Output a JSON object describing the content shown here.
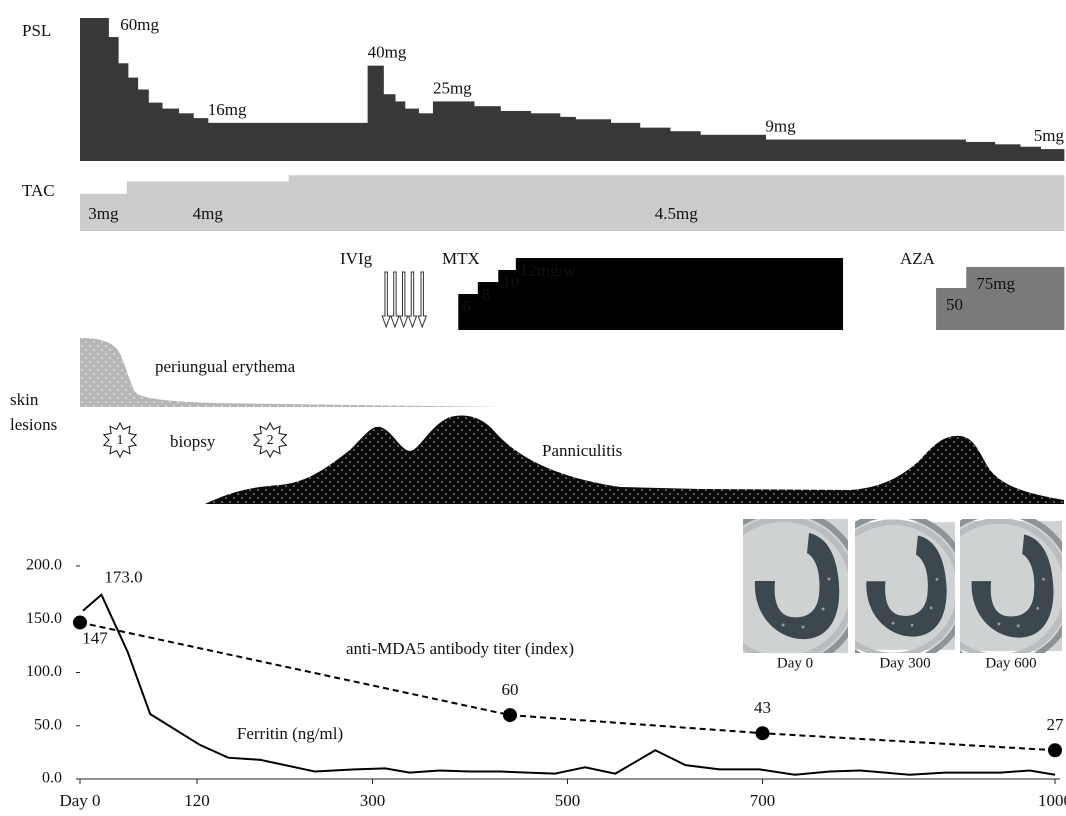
{
  "timeline": {
    "psl": {
      "label": "PSL",
      "end": 1009,
      "steps": [
        {
          "start": 0,
          "dose": 60,
          "label": "60mg"
        },
        {
          "start": 29,
          "dose": 52
        },
        {
          "start": 39,
          "dose": 41
        },
        {
          "start": 49,
          "dose": 35
        },
        {
          "start": 59,
          "dose": 30
        },
        {
          "start": 70,
          "dose": 24.5
        },
        {
          "start": 84,
          "dose": 22
        },
        {
          "start": 101,
          "dose": 20
        },
        {
          "start": 116,
          "dose": 18
        },
        {
          "start": 131,
          "dose": 16,
          "label": "16mg"
        },
        {
          "start": 295,
          "dose": 40,
          "label": "40mg"
        },
        {
          "start": 311,
          "dose": 28
        },
        {
          "start": 323,
          "dose": 25
        },
        {
          "start": 333,
          "dose": 22
        },
        {
          "start": 347,
          "dose": 20
        },
        {
          "start": 362,
          "dose": 25,
          "label": "25mg"
        },
        {
          "start": 404,
          "dose": 23
        },
        {
          "start": 431,
          "dose": 21
        },
        {
          "start": 462,
          "dose": 20
        },
        {
          "start": 492,
          "dose": 18.5
        },
        {
          "start": 508,
          "dose": 17.5
        },
        {
          "start": 544,
          "dose": 16
        },
        {
          "start": 574,
          "dose": 14
        },
        {
          "start": 605,
          "dose": 12.5
        },
        {
          "start": 636,
          "dose": 11
        },
        {
          "start": 703,
          "dose": 9,
          "label": "9mg"
        },
        {
          "start": 908,
          "dose": 8
        },
        {
          "start": 938,
          "dose": 7
        },
        {
          "start": 964,
          "dose": 6
        },
        {
          "start": 985,
          "dose": 5,
          "label": "5mg"
        }
      ]
    },
    "tac": {
      "label": "TAC",
      "end": 1009,
      "steps": [
        {
          "start": 0,
          "dose": 3,
          "label": "3mg"
        },
        {
          "start": 48,
          "dose": 4,
          "label": "4mg"
        },
        {
          "start": 214,
          "dose": 4.5,
          "label": "4.5mg"
        }
      ]
    },
    "ivig": {
      "label": "IVIg",
      "days": [
        314,
        323,
        332,
        341,
        351
      ]
    },
    "mtx": {
      "label": "MTX",
      "end": 782,
      "steps": [
        {
          "start": 388,
          "dose": 6,
          "label": "6"
        },
        {
          "start": 408,
          "dose": 8,
          "label": "8"
        },
        {
          "start": 429,
          "dose": 10,
          "label": "10"
        },
        {
          "start": 447,
          "dose": 12,
          "label": "12mg/w"
        }
      ]
    },
    "aza": {
      "label": "AZA",
      "end": 1009,
      "steps": [
        {
          "start": 878,
          "dose": 50,
          "label": "50"
        },
        {
          "start": 909,
          "dose": 75,
          "label": "75mg"
        }
      ]
    },
    "skin": {
      "label_lines": [
        "skin",
        "lesions"
      ],
      "periungual": "periungual erythema",
      "panniculitis": "Panniculitis",
      "biopsy": {
        "label": "biopsy",
        "markers": [
          {
            "label": "1",
            "day": 41
          },
          {
            "label": "2",
            "day": 195
          }
        ]
      }
    }
  },
  "ct_images": [
    "Day 0",
    "Day 300",
    "Day 600"
  ],
  "chart_data": {
    "type": "line",
    "xlim": [
      0,
      1000
    ],
    "xticks": [
      {
        "value": 0,
        "label": "Day 0"
      },
      120,
      300,
      500,
      700,
      1000
    ],
    "ylim": [
      0,
      200
    ],
    "yticks": [
      {
        "value": 0,
        "label": "0.0"
      },
      {
        "value": 50,
        "label": "50.0"
      },
      {
        "value": 100,
        "label": "100.0"
      },
      {
        "value": 150,
        "label": "150.0"
      },
      {
        "value": 200,
        "label": "200.0"
      }
    ],
    "series": [
      {
        "name": "anti-MDA5 antibody titer (index)",
        "color": "#000000",
        "dashed": true,
        "markers": true,
        "x": [
          0,
          441,
          700,
          1000
        ],
        "values": [
          147,
          60,
          43,
          27
        ]
      },
      {
        "name": "Ferritin (ng/ml)",
        "color": "#000000",
        "x": [
          3,
          22,
          49,
          72,
          123,
          152,
          185,
          241,
          282,
          313,
          338,
          369,
          400,
          431,
          487,
          518,
          549,
          590,
          621,
          656,
          697,
          733,
          769,
          800,
          851,
          887,
          944,
          974,
          1000
        ],
        "values": [
          158,
          173,
          119,
          61,
          32,
          20,
          18,
          7,
          9,
          10,
          6,
          8,
          7,
          7,
          5,
          11,
          5,
          27,
          13,
          9,
          9,
          4,
          7,
          8,
          4,
          6,
          6,
          8,
          4
        ],
        "value_labels": [
          null,
          "173.0",
          null,
          null,
          null,
          null,
          null,
          null,
          null,
          null,
          null,
          null,
          null,
          null,
          null,
          null,
          null,
          null,
          null,
          null,
          null,
          null,
          null,
          null,
          null,
          null,
          null,
          null,
          null
        ]
      }
    ]
  }
}
